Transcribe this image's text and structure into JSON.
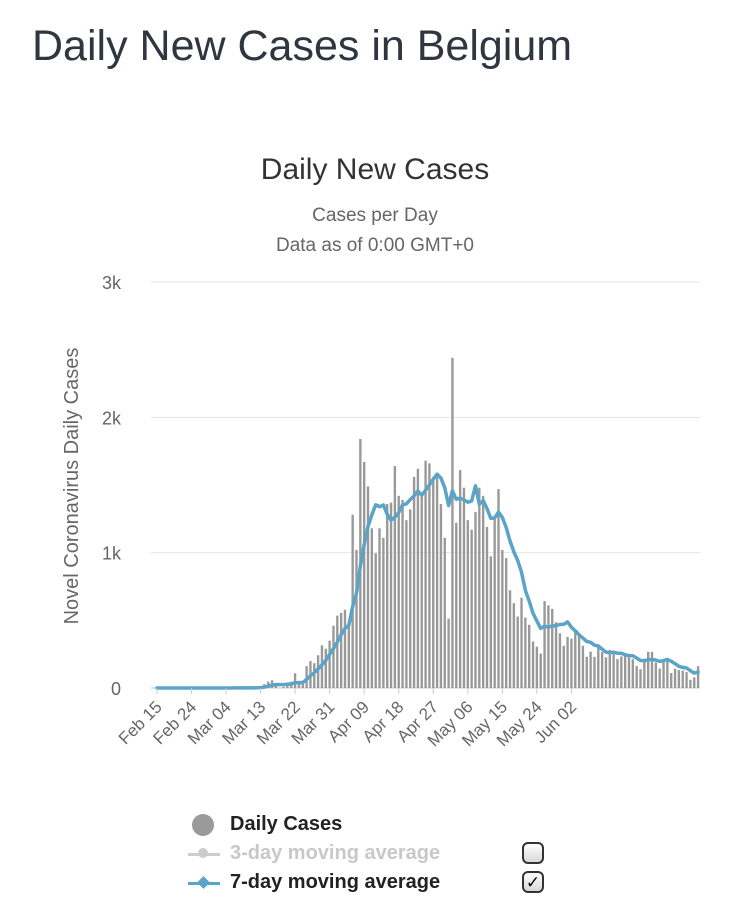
{
  "page": {
    "title": "Daily New Cases in Belgium"
  },
  "chart_data": {
    "type": "bar",
    "title": "Daily New Cases",
    "subtitle_lines": [
      "Cases per Day",
      "Data as of 0:00 GMT+0"
    ],
    "ylabel": "Novel Coronavirus Daily Cases",
    "xlabel": "",
    "ylim": [
      0,
      3000
    ],
    "yticks": [
      0,
      1000,
      2000,
      3000
    ],
    "ytick_labels": [
      "0",
      "1k",
      "2k",
      "3k"
    ],
    "grid": true,
    "legend_position": "bottom",
    "start_date": "2020-02-15",
    "xtick_labels": [
      "Feb 15",
      "Feb 24",
      "Mar 04",
      "Mar 13",
      "Mar 22",
      "Mar 31",
      "Apr 09",
      "Apr 18",
      "Apr 27",
      "May 06",
      "May 15",
      "May 24",
      "Jun 02"
    ],
    "series": [
      {
        "name": "Daily Cases",
        "type": "bar",
        "color": "#999999",
        "values": [
          0,
          0,
          0,
          0,
          0,
          0,
          0,
          0,
          0,
          0,
          0,
          0,
          0,
          0,
          0,
          1,
          0,
          0,
          0,
          1,
          1,
          3,
          0,
          0,
          0,
          1,
          10,
          5,
          28,
          47,
          58,
          28,
          0,
          8,
          26,
          46,
          109,
          53,
          41,
          161,
          199,
          183,
          242,
          315,
          290,
          350,
          460,
          535,
          555,
          578,
          473,
          1280,
          1020,
          1840,
          1670,
          1490,
          1180,
          996,
          1180,
          1110,
          1360,
          1370,
          1640,
          1420,
          1390,
          1240,
          1320,
          1560,
          1620,
          1420,
          1680,
          1660,
          1550,
          1570,
          1360,
          1110,
          512,
          2440,
          1220,
          1610,
          1480,
          1240,
          1170,
          1300,
          1480,
          1420,
          1190,
          973,
          1270,
          1470,
          1020,
          960,
          722,
          627,
          528,
          667,
          520,
          467,
          344,
          305,
          254,
          642,
          611,
          585,
          486,
          404,
          312,
          377,
          364,
          426,
          384,
          312,
          231,
          269,
          230,
          321,
          266,
          227,
          281,
          259,
          214,
          233,
          237,
          227,
          213,
          162,
          139,
          208,
          268,
          267,
          188,
          144,
          201,
          205,
          110,
          142,
          132,
          129,
          117,
          61,
          78,
          162
        ]
      },
      {
        "name": "3-day moving average",
        "type": "line",
        "color": "#cccccc",
        "visible": false
      },
      {
        "name": "7-day moving average",
        "type": "line",
        "color": "#5ba3c7",
        "visible": true
      }
    ]
  },
  "legend": {
    "items": [
      {
        "label": "Daily Cases"
      },
      {
        "label": "3-day moving average",
        "checkbox": ""
      },
      {
        "label": "7-day moving average",
        "checkbox": "✓"
      }
    ]
  }
}
